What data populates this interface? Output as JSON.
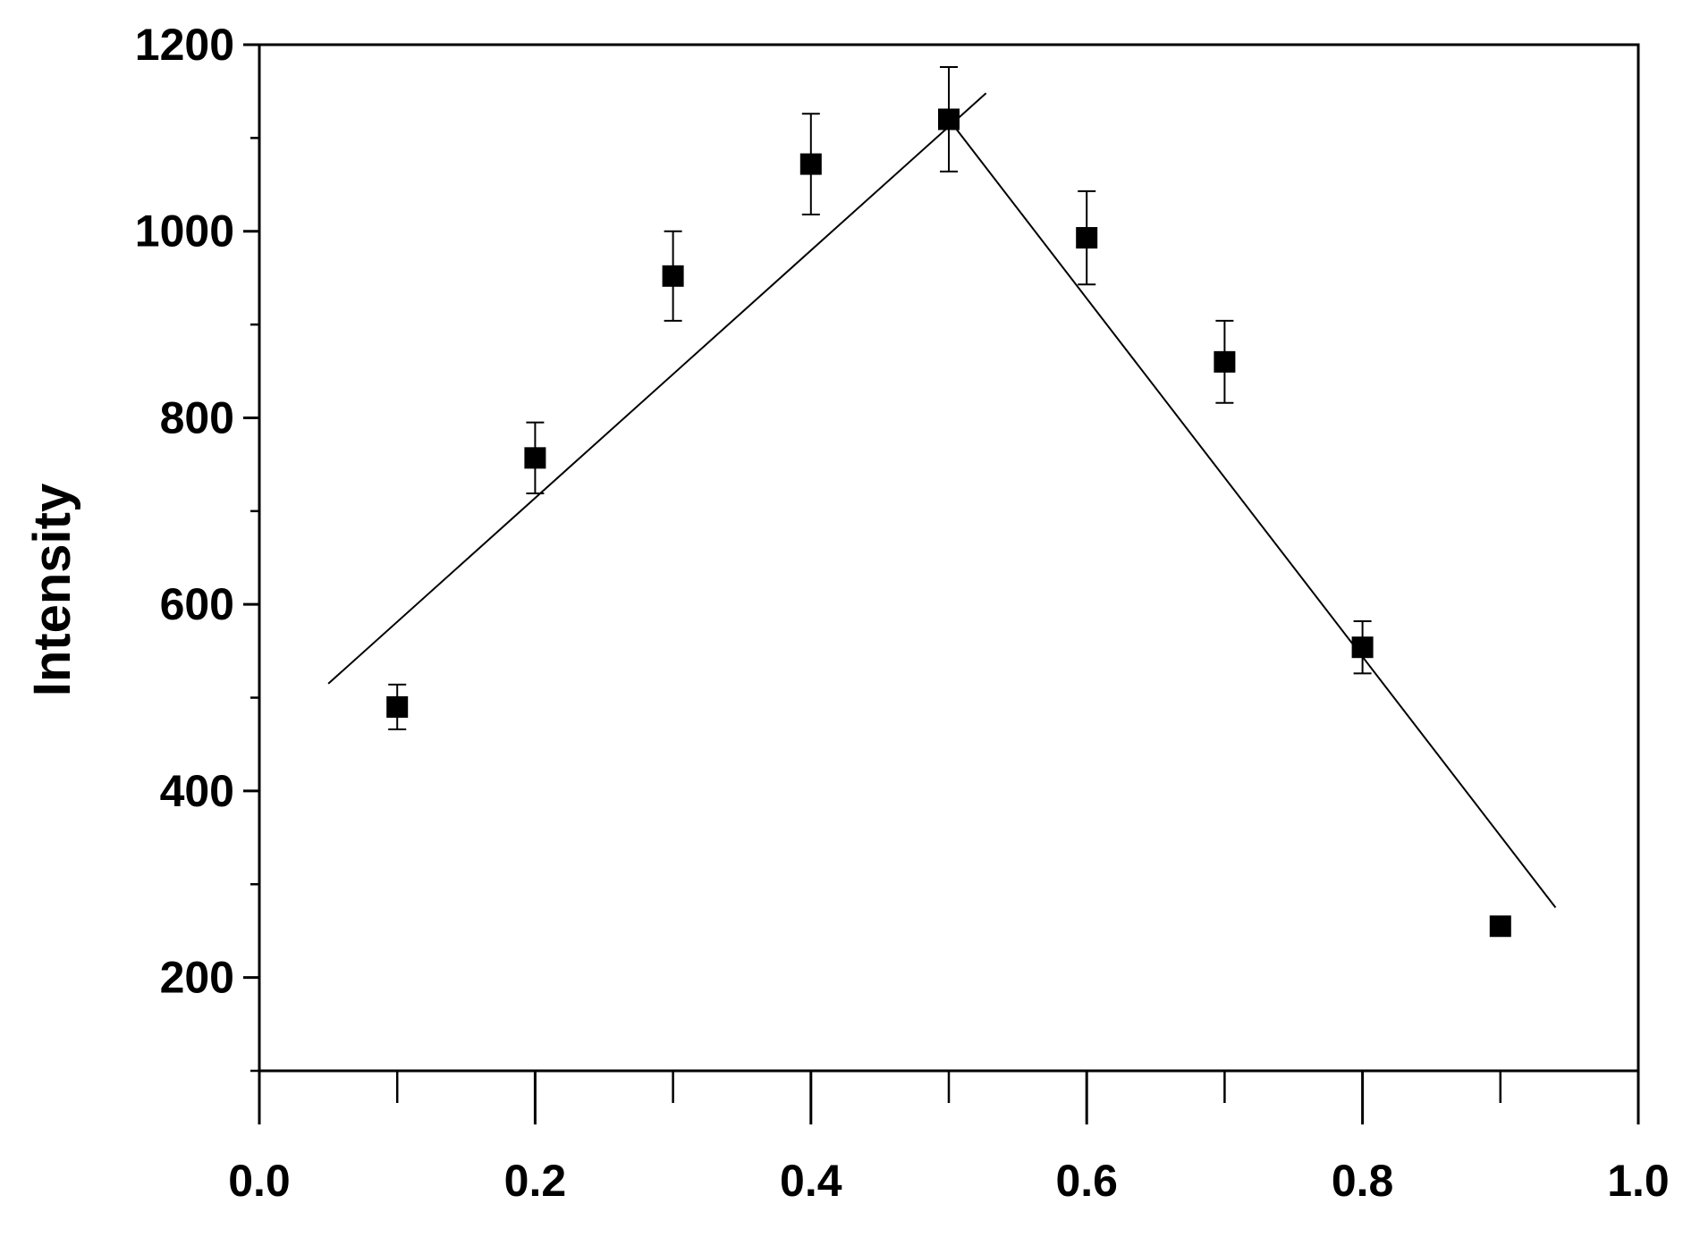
{
  "chart_data": {
    "type": "scatter",
    "title": "",
    "xlabel": "",
    "ylabel": "Intensity",
    "xlim": [
      0.0,
      1.0
    ],
    "ylim": [
      100,
      1200
    ],
    "x_ticks": [
      "0.0",
      "0.2",
      "0.4",
      "0.6",
      "0.8",
      "1.0"
    ],
    "y_ticks": [
      "200",
      "400",
      "600",
      "800",
      "1000",
      "1200"
    ],
    "grid": false,
    "legend": "none",
    "series": [
      {
        "marker": "square",
        "x": [
          0.1,
          0.2,
          0.3,
          0.4,
          0.5,
          0.6,
          0.7,
          0.8,
          0.9
        ],
        "y": [
          490,
          757,
          952,
          1072,
          1120,
          993,
          860,
          554,
          255
        ],
        "error": [
          24,
          38,
          48,
          54,
          56,
          50,
          44,
          28,
          8
        ]
      }
    ],
    "fit_lines": [
      {
        "x": [
          0.05,
          0.527
        ],
        "y": [
          515,
          1148
        ]
      },
      {
        "x": [
          0.5,
          0.94
        ],
        "y": [
          1120,
          275
        ]
      }
    ],
    "color": "#000000"
  }
}
